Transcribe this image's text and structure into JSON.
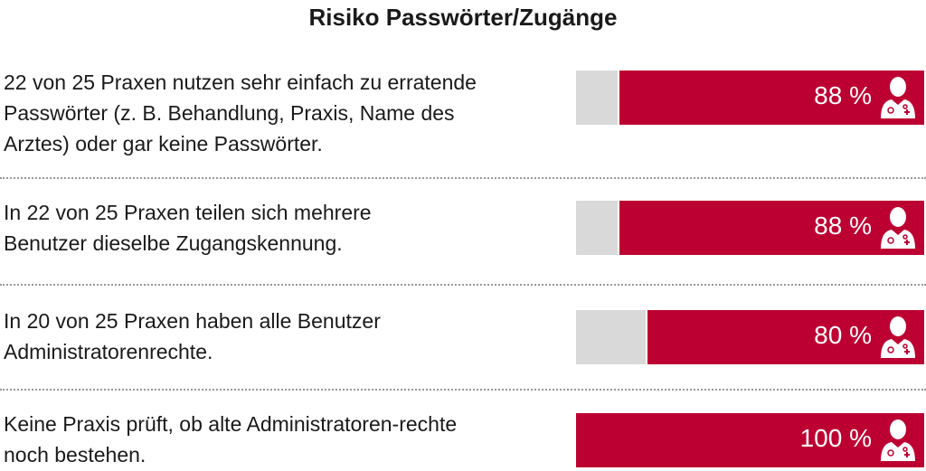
{
  "chart_data": {
    "type": "bar",
    "title": "Risiko Passwörter/Zugänge",
    "colors": {
      "fill": "#bd0032",
      "rest": "#d9d9d9"
    },
    "icon": "doctor-icon",
    "rows": [
      {
        "text": "22 von 25 Praxen nutzen sehr einfach zu erratende Passwörter (z. B. Behandlung, Praxis, Name des Arztes) oder gar keine Passwörter.",
        "value": 88,
        "label": "88 %"
      },
      {
        "text": "In 22 von 25 Praxen teilen sich mehrere Benutzer dieselbe Zugangskennung.",
        "value": 88,
        "label": "88 %"
      },
      {
        "text": "In 20 von 25 Praxen haben alle Benutzer Administratorenrechte.",
        "value": 80,
        "label": "80 %"
      },
      {
        "text": "Keine Praxis prüft, ob alte Administratoren-rechte noch bestehen.",
        "value": 100,
        "label": "100 %"
      }
    ]
  }
}
